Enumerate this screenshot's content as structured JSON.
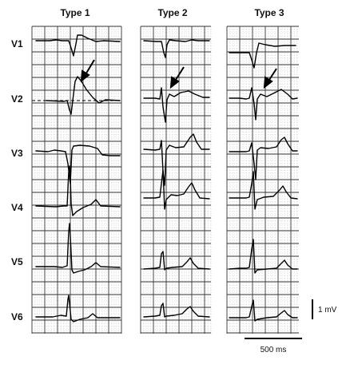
{
  "columns": [
    {
      "title": "Type 1"
    },
    {
      "title": "Type 2"
    },
    {
      "title": "Type 3"
    }
  ],
  "leads": [
    "V1",
    "V2",
    "V3",
    "V4",
    "V5",
    "V6"
  ],
  "scale": {
    "voltage_label": "1 mV",
    "time_label": "500 ms"
  }
}
